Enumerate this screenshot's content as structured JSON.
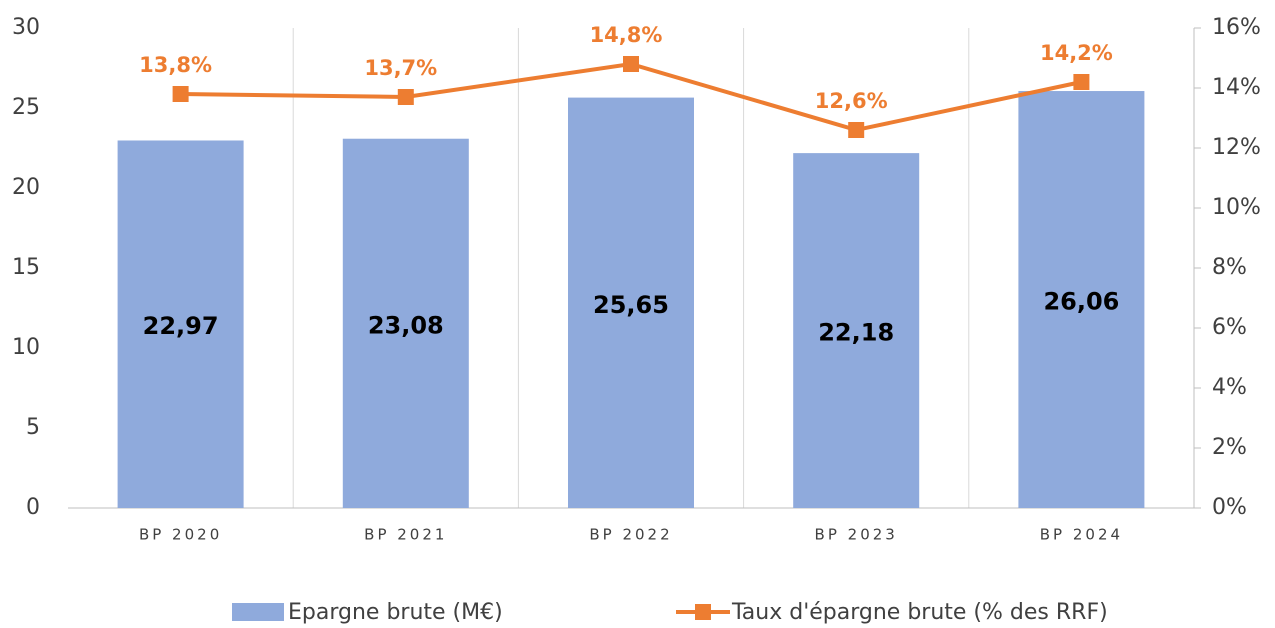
{
  "chart_data": {
    "type": "bar",
    "categories": [
      "BP 2020",
      "BP 2021",
      "BP 2022",
      "BP 2023",
      "BP 2024"
    ],
    "series": [
      {
        "name": "Epargne brute (M€)",
        "type": "bar",
        "color": "#8faadc",
        "values": [
          22.97,
          23.08,
          25.65,
          22.18,
          26.06
        ],
        "value_labels": [
          "22,97",
          "23,08",
          "25,65",
          "22,18",
          "26,06"
        ]
      },
      {
        "name": "Taux d'épargne brute (% des RRF)",
        "type": "line",
        "axis": "y2",
        "color": "#ed7d31",
        "values": [
          13.8,
          13.7,
          14.8,
          12.6,
          14.2
        ],
        "value_labels": [
          "13,8%",
          "13,7%",
          "14,8%",
          "12,6%",
          "14,2%"
        ]
      }
    ],
    "ylim": [
      0,
      30
    ],
    "yticks": [
      0,
      5,
      10,
      15,
      20,
      25,
      30
    ],
    "y2lim": [
      0,
      16
    ],
    "y2ticks": [
      {
        "value": 0,
        "label": "0%"
      },
      {
        "value": 2,
        "label": "2%"
      },
      {
        "value": 4,
        "label": "4%"
      },
      {
        "value": 6,
        "label": "6%"
      },
      {
        "value": 8,
        "label": "8%"
      },
      {
        "value": 10,
        "label": "10%"
      },
      {
        "value": 12,
        "label": "12%"
      },
      {
        "value": 14,
        "label": "14%"
      },
      {
        "value": 16,
        "label": "16%"
      }
    ],
    "legend": "bottom"
  }
}
